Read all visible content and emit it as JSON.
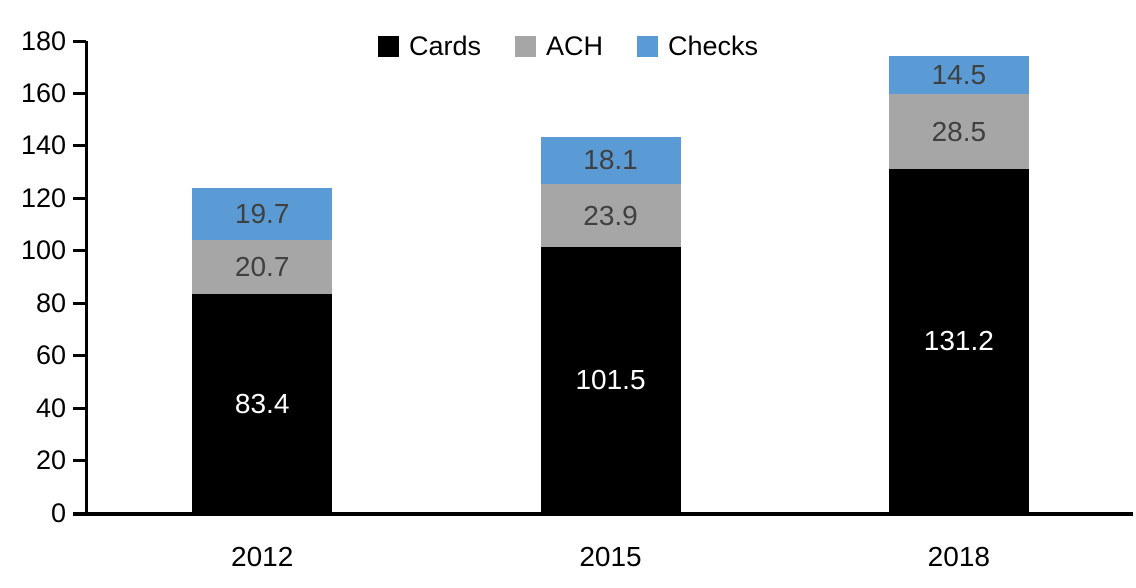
{
  "chart_data": {
    "type": "bar",
    "stacked": true,
    "title": "",
    "xlabel": "",
    "ylabel": "",
    "categories": [
      "2012",
      "2015",
      "2018"
    ],
    "series": [
      {
        "name": "Cards",
        "color": "#000000",
        "label_color": "#ffffff",
        "values": [
          83.4,
          101.5,
          131.2
        ]
      },
      {
        "name": "ACH",
        "color": "#a6a6a6",
        "label_color": "#404040",
        "values": [
          20.7,
          23.9,
          28.5
        ]
      },
      {
        "name": "Checks",
        "color": "#5b9bd5",
        "label_color": "#404040",
        "values": [
          19.7,
          18.1,
          14.5
        ]
      }
    ],
    "ylim": [
      0,
      180
    ],
    "yticks": [
      0,
      20,
      40,
      60,
      80,
      100,
      120,
      140,
      160,
      180
    ],
    "grid": false,
    "legend_position": "top",
    "legend_labels": [
      "Cards",
      "ACH",
      "Checks"
    ],
    "axis_color": "#000000",
    "background_color": "#ffffff"
  }
}
